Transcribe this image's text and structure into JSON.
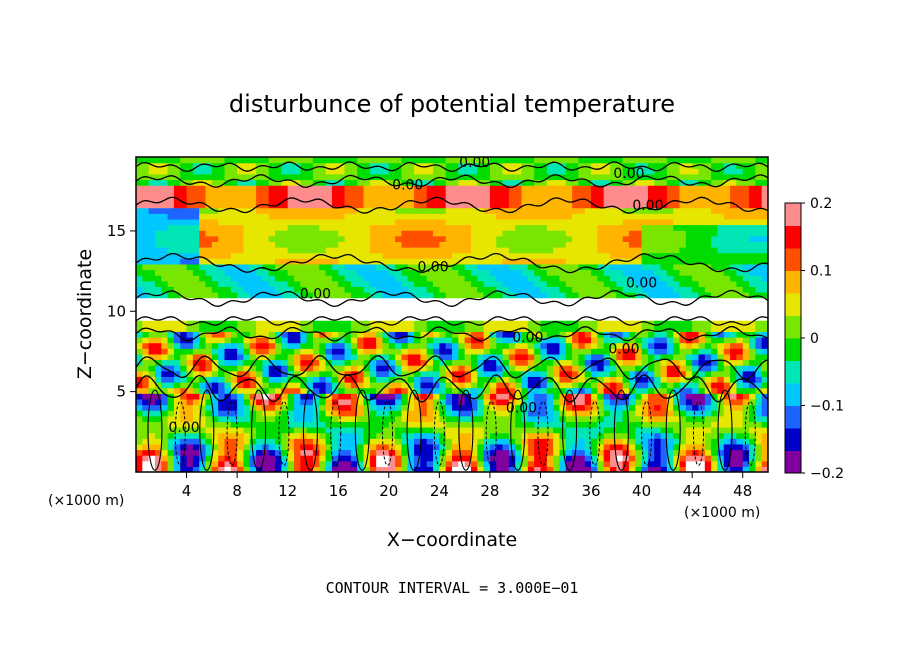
{
  "chart_data": {
    "type": "heatmap",
    "title": "disturbunce of potential temperature",
    "xlabel": "X−coordinate",
    "ylabel": "Z−coordinate",
    "x_unit": "(×1000 m)",
    "z_unit": "(×1000 m)",
    "xlim": [
      0,
      50
    ],
    "ylim": [
      0,
      19.6
    ],
    "x_ticks": [
      4,
      8,
      12,
      16,
      20,
      24,
      28,
      32,
      36,
      40,
      44,
      48
    ],
    "y_ticks": [
      5,
      10,
      15
    ],
    "colorbar": {
      "range": [
        -0.2,
        0.2
      ],
      "ticks": [
        "0.2",
        "0.1",
        "0",
        "−0.1",
        "−0.2"
      ],
      "tick_values": [
        0.2,
        0.1,
        0,
        -0.1,
        -0.2
      ]
    },
    "contour_labels": [
      "0.00",
      "0.00",
      "0.00",
      "0.00",
      "0.00",
      "0.00",
      "0.00",
      "0.00",
      "0.00",
      "0.00",
      "0.00"
    ],
    "footer": "CONTOUR INTERVAL = 3.000E−01",
    "colors": [
      "#8000a0",
      "#0000c8",
      "#1e64ff",
      "#00c8ff",
      "#00e6b4",
      "#00dc00",
      "#78e600",
      "#e6e600",
      "#ffb400",
      "#ff5000",
      "#ff0000",
      "#ff8c8c",
      "#ffffff"
    ],
    "grid": false
  }
}
